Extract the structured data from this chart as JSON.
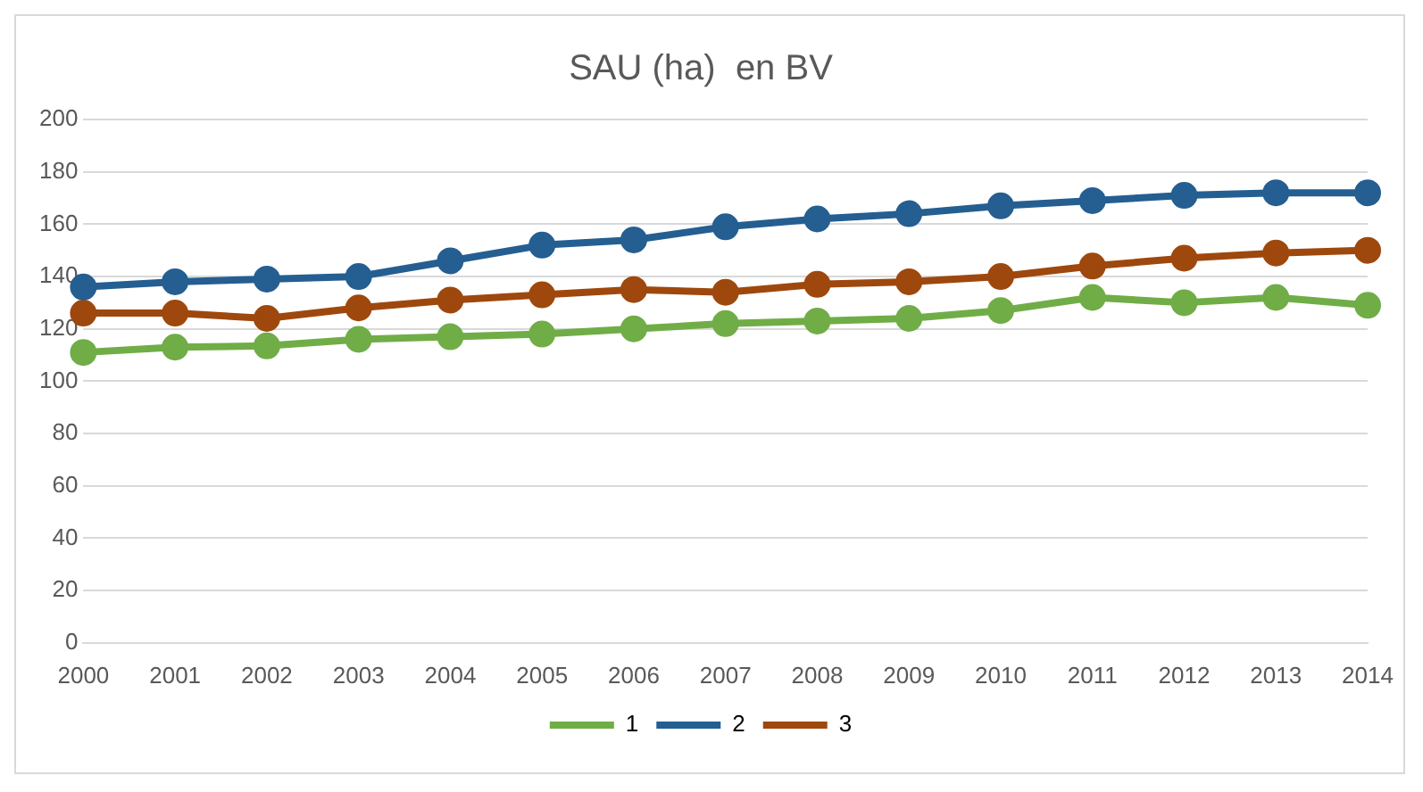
{
  "chart_data": {
    "type": "line",
    "title": "SAU (ha)  en BV",
    "categories": [
      "2000",
      "2001",
      "2002",
      "2003",
      "2004",
      "2005",
      "2006",
      "2007",
      "2008",
      "2009",
      "2010",
      "2011",
      "2012",
      "2013",
      "2014"
    ],
    "series": [
      {
        "name": "1",
        "color": "#70ad47",
        "values": [
          111,
          113,
          113.5,
          116,
          117,
          118,
          120,
          122,
          123,
          124,
          127,
          132,
          130,
          132,
          129
        ]
      },
      {
        "name": "2",
        "color": "#255e91",
        "values": [
          136,
          138,
          139,
          140,
          146,
          152,
          154,
          159,
          162,
          164,
          167,
          169,
          171,
          172,
          172
        ]
      },
      {
        "name": "3",
        "color": "#9e480e",
        "values": [
          126,
          126,
          124,
          128,
          131,
          133,
          135,
          134,
          137,
          138,
          140,
          144,
          147,
          149,
          150
        ]
      }
    ],
    "ylim": [
      0,
      200
    ],
    "yticks": [
      0,
      20,
      40,
      60,
      80,
      100,
      120,
      140,
      160,
      180,
      200
    ],
    "grid": "y",
    "legend": "bottom",
    "marker": "circle",
    "line_style": "solid"
  }
}
